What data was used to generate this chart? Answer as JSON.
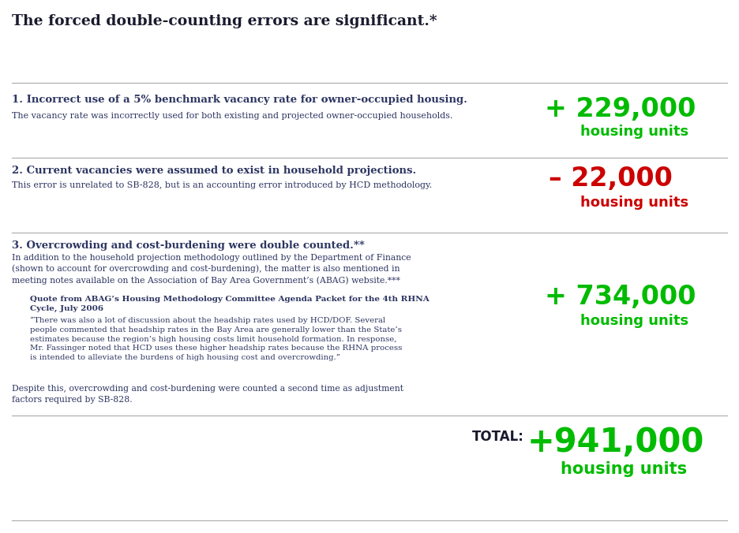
{
  "title": "The forced double-counting errors are significant.*",
  "title_color": "#1a1a2e",
  "title_fontsize": 13.5,
  "background_color": "#ffffff",
  "text_color": "#2d3561",
  "separator_color": "#999999",
  "sections": [
    {
      "number": "1.",
      "heading": "Incorrect use of a 5% benchmark vacancy rate for owner-occupied housing.",
      "body": "The vacancy rate was incorrectly used for both existing and projected owner-occupied households.",
      "value_line1": "+ 229,000",
      "value_line2": "housing units",
      "value_color": "#00bb00",
      "value_fontsize": 24,
      "unit_fontsize": 13
    },
    {
      "number": "2.",
      "heading": "Current vacancies were assumed to exist in household projections.",
      "body": "This error is unrelated to SB-828, but is an accounting error introduced by HCD methodology.",
      "value_line1": "– 22,000",
      "value_line2": "housing units",
      "value_color": "#cc0000",
      "value_fontsize": 24,
      "unit_fontsize": 13
    },
    {
      "number": "3.",
      "heading": "Overcrowding and cost-burdening were double counted.**",
      "body_para1": "In addition to the household projection methodology outlined by the Department of Finance\n(shown to account for overcrowding and cost-burdening), the matter is also mentioned in\nmeeting notes available on the Association of Bay Area Government’s (ABAG) website.***",
      "quote_label": "Quote from ABAG’s Housing Methodology Committee Agenda Packet for the 4th RHNA\nCycle, July 2006",
      "quote_body": "“There was also a lot of discussion about the headship rates used by HCD/DOF. Several\npeople commented that headship rates in the Bay Area are generally lower than the State’s\nestimates because the region’s high housing costs limit household formation. In response,\nMr. Fassinger noted that HCD uses these higher headship rates because the RHNA process\nis intended to alleviate the burdens of high housing cost and overcrowding.”",
      "body_closing": "Despite this, overcrowding and cost-burdening were counted a second time as adjustment\nfactors required by SB-828.",
      "value_line1": "+ 734,000",
      "value_line2": "housing units",
      "value_color": "#00bb00",
      "value_fontsize": 24,
      "unit_fontsize": 13
    }
  ],
  "total_label": "TOTAL:",
  "total_value": "+941,000",
  "total_unit": "housing units",
  "total_value_color": "#00bb00",
  "total_label_color": "#1a1a2e",
  "total_fontsize": 30,
  "total_unit_fontsize": 15
}
